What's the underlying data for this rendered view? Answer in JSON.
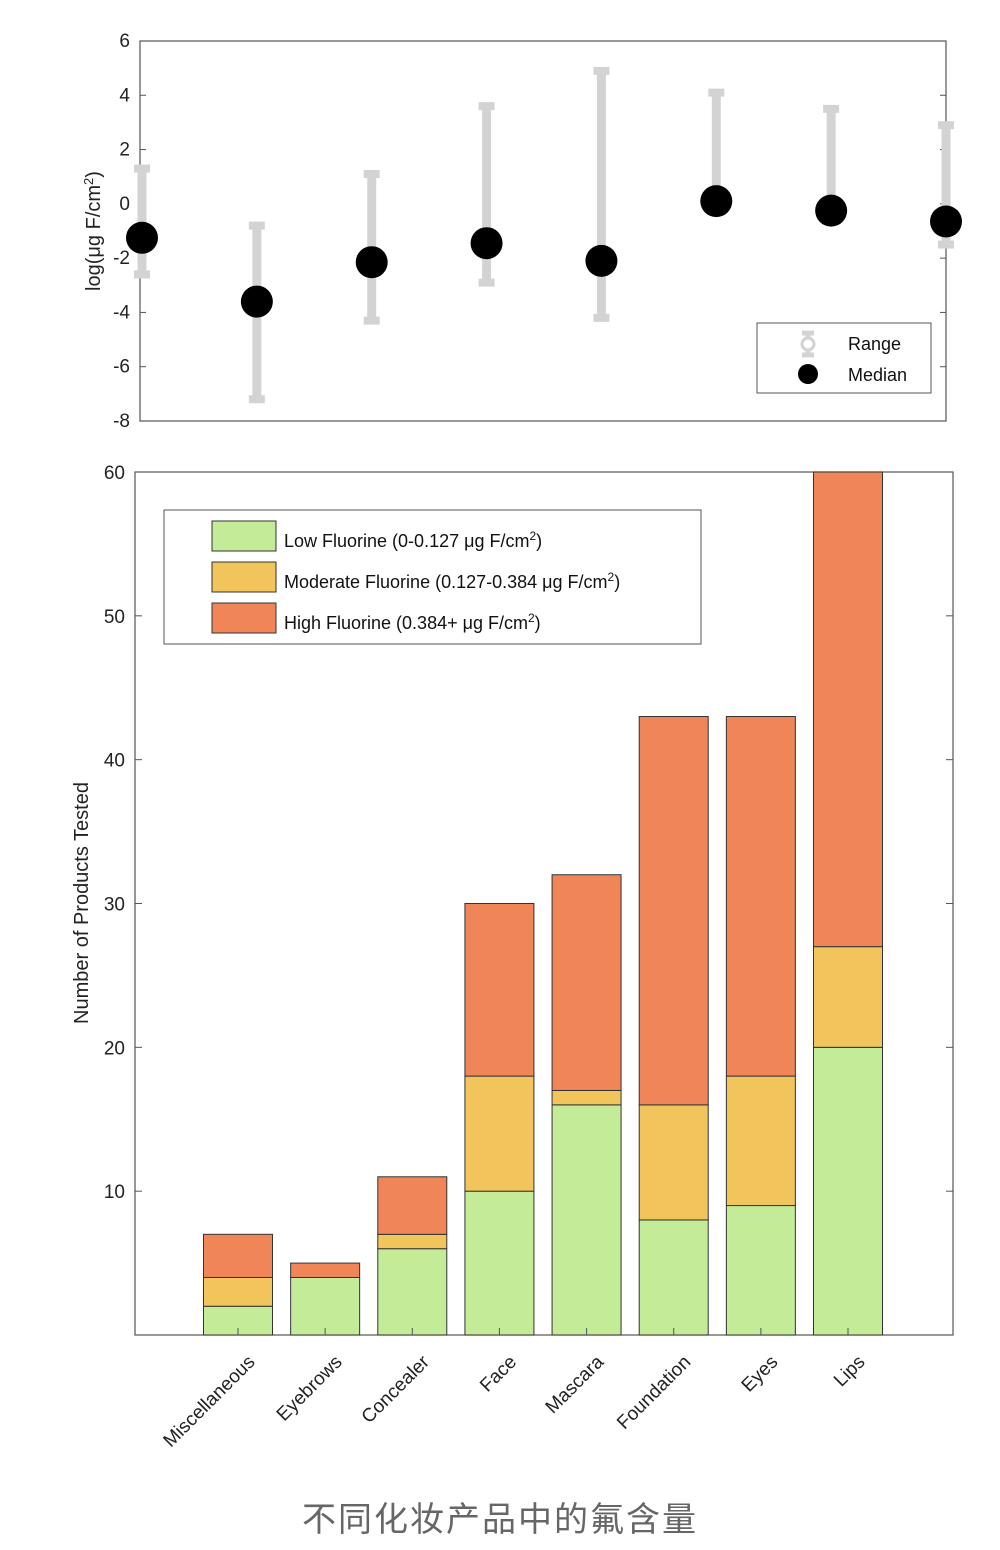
{
  "caption": "不同化妆产品中的氟含量",
  "colors": {
    "range": "#d3d3d3",
    "median": "#000000",
    "low": "#c3eb98",
    "moderate": "#f2c45c",
    "high": "#f08658",
    "axis": "#555555"
  },
  "chart_data": [
    {
      "type": "scatter",
      "ylabel_main": "log(μg F/cm",
      "ylabel_sup": "2",
      "ylabel_close": ")",
      "ylim": [
        -8,
        6
      ],
      "yticks": [
        "6",
        "4",
        "2",
        "0",
        "-2",
        "-4",
        "-6",
        "-8"
      ],
      "categories": [
        "Miscellaneous",
        "Eyebrows",
        "Concealer",
        "Face",
        "Mascara",
        "Foundation",
        "Eyes",
        "Lips"
      ],
      "range_low": [
        -2.6,
        -7.2,
        -4.3,
        -2.9,
        -4.2,
        0.2,
        0.0,
        -1.5
      ],
      "range_high": [
        1.3,
        -0.8,
        1.1,
        3.6,
        4.9,
        4.1,
        3.5,
        2.9
      ],
      "median": [
        -1.25,
        -3.6,
        -2.15,
        -1.45,
        -2.1,
        0.1,
        -0.25,
        -0.65
      ],
      "legend": {
        "range": "Range",
        "median": "Median",
        "position": "bottom-right"
      }
    },
    {
      "type": "bar",
      "stacked": true,
      "ylabel": "Number of Products Tested",
      "ylim": [
        0,
        60
      ],
      "yticks": [
        "60",
        "50",
        "40",
        "30",
        "20",
        "10"
      ],
      "categories": [
        "Miscellaneous",
        "Eyebrows",
        "Concealer",
        "Face",
        "Mascara",
        "Foundation",
        "Eyes",
        "Lips"
      ],
      "series": [
        {
          "name": "Low Fluorine (0-0.127 μg F/cm",
          "sup": "2",
          "close": ")",
          "values": [
            2,
            4,
            6,
            10,
            16,
            8,
            9,
            20
          ]
        },
        {
          "name": "Moderate Fluorine (0.127-0.384 μg F/cm",
          "sup": "2",
          "close": ")",
          "values": [
            2,
            0,
            1,
            8,
            1,
            8,
            9,
            7
          ]
        },
        {
          "name": "High Fluorine (0.384+ μg F/cm",
          "sup": "2",
          "close": ")",
          "values": [
            3,
            1,
            4,
            12,
            15,
            27,
            25,
            33
          ]
        }
      ],
      "legend_position": "top-left"
    }
  ]
}
